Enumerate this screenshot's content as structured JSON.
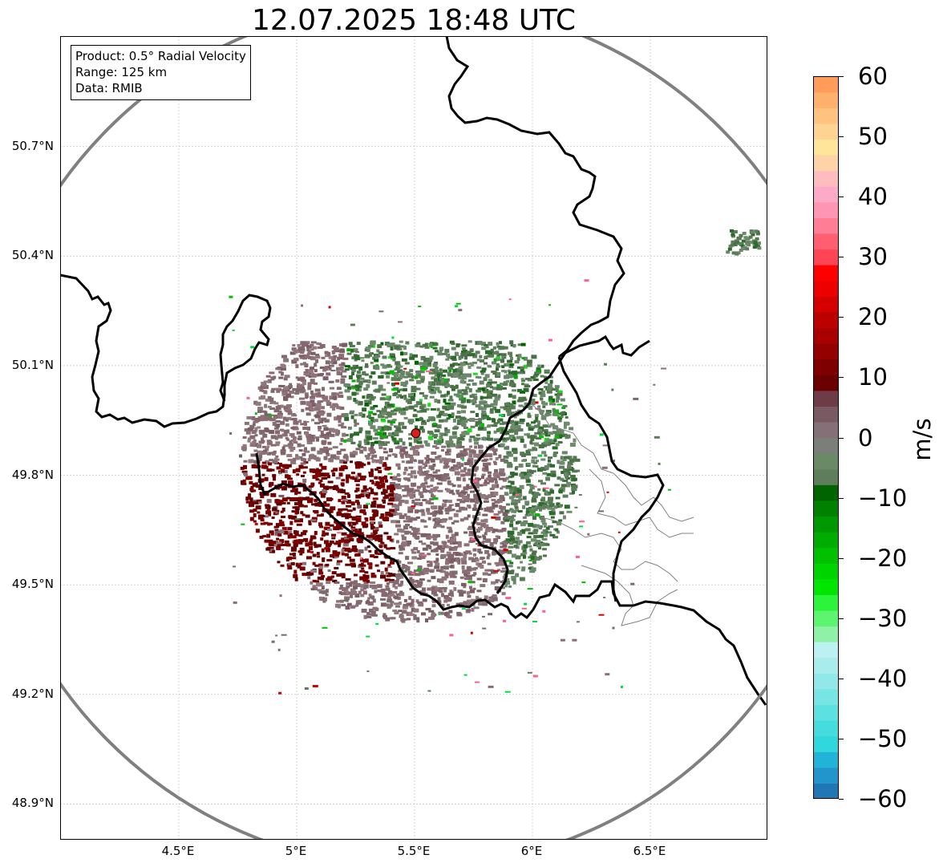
{
  "title": "12.07.2025 18:48 UTC",
  "info_box": {
    "product": "Product: 0.5° Radial Velocity",
    "range": "Range: 125 km",
    "data": "Data: RMIB"
  },
  "map": {
    "lon_range": [
      4.0,
      7.0
    ],
    "lat_range": [
      48.8,
      51.0
    ],
    "lat_ticks": [
      {
        "value": 48.9,
        "label": "48.9°N"
      },
      {
        "value": 49.2,
        "label": "49.2°N"
      },
      {
        "value": 49.5,
        "label": "49.5°N"
      },
      {
        "value": 49.8,
        "label": "49.8°N"
      },
      {
        "value": 50.1,
        "label": "50.1°N"
      },
      {
        "value": 50.4,
        "label": "50.4°N"
      },
      {
        "value": 50.7,
        "label": "50.7°N"
      }
    ],
    "lon_ticks": [
      {
        "value": 4.5,
        "label": "4.5°E"
      },
      {
        "value": 5.0,
        "label": "5°E"
      },
      {
        "value": 5.5,
        "label": "5.5°E"
      },
      {
        "value": 6.0,
        "label": "6°E"
      },
      {
        "value": 6.5,
        "label": "6.5°E"
      }
    ],
    "radar_site": {
      "lon": 5.505,
      "lat": 49.915,
      "color": "#dd1c1c"
    },
    "range_ring_color": "#808080",
    "border_color": "#000000",
    "admin_border_color": "#808080",
    "grid_color": "#bbbbbb"
  },
  "colorbar": {
    "label": "m/s",
    "min": -60,
    "max": 60,
    "ticks": [
      {
        "value": 60,
        "label": "60"
      },
      {
        "value": 50,
        "label": "50"
      },
      {
        "value": 40,
        "label": "40"
      },
      {
        "value": 30,
        "label": "30"
      },
      {
        "value": 20,
        "label": "20"
      },
      {
        "value": 10,
        "label": "10"
      },
      {
        "value": 0,
        "label": "0"
      },
      {
        "value": -10,
        "label": "−10"
      },
      {
        "value": -20,
        "label": "−20"
      },
      {
        "value": -30,
        "label": "−30"
      },
      {
        "value": -40,
        "label": "−40"
      },
      {
        "value": -50,
        "label": "−50"
      },
      {
        "value": -60,
        "label": "−60"
      }
    ],
    "colors": [
      "#1f77b4",
      "#2196cc",
      "#22b4d6",
      "#2ed8dc",
      "#44dcdc",
      "#5ce0e0",
      "#78e4e4",
      "#92e8e8",
      "#a8ecec",
      "#bdf0f0",
      "#8ff0a8",
      "#5df470",
      "#2cf43a",
      "#00e600",
      "#00d400",
      "#00c000",
      "#00ac00",
      "#009800",
      "#008200",
      "#006400",
      "#5e7d5a",
      "#6a8a66",
      "#7b7f7a",
      "#857078",
      "#7a5a62",
      "#6e3c46",
      "#6a0000",
      "#7f0000",
      "#940000",
      "#a80000",
      "#bc0000",
      "#d40000",
      "#ec0000",
      "#ff0000",
      "#ff4555",
      "#ff5f70",
      "#ff7d95",
      "#ff95b4",
      "#ffa9c8",
      "#ffbcbf",
      "#ffd3a8",
      "#ffe59a",
      "#ffd391",
      "#ffc37f",
      "#ffb06a",
      "#ff9c5a"
    ]
  }
}
